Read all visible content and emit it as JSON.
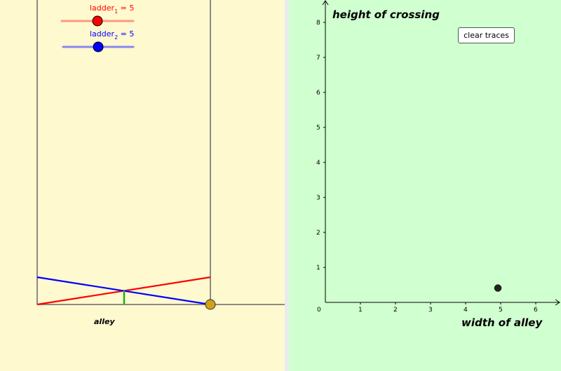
{
  "sliders": [
    {
      "var": "ladder",
      "sub": "1",
      "value": "5",
      "color": "#ff0000",
      "track_color": "#ff9980"
    },
    {
      "var": "ladder",
      "sub": "2",
      "value": "5",
      "color": "#0000ff",
      "track_color": "#8888ee"
    }
  ],
  "left_canvas": {
    "alley_label": "alley",
    "ladder1_color": "#ff0000",
    "ladder2_color": "#0000ff",
    "crossing_color": "#22aa22",
    "handle_color": "#d4a017"
  },
  "graph": {
    "y_label": "height of crossing",
    "x_label": "width of alley",
    "x_ticks": [
      "0",
      "1",
      "2",
      "3",
      "4",
      "5",
      "6"
    ],
    "y_ticks": [
      "1",
      "2",
      "3",
      "4",
      "5",
      "6",
      "7",
      "8"
    ],
    "point": {
      "x": 4.92,
      "y": 0.41
    }
  },
  "clear_button_label": "clear traces"
}
